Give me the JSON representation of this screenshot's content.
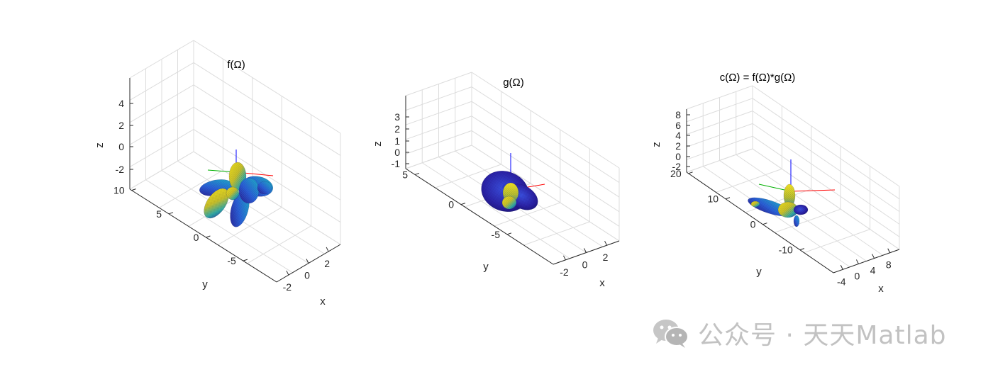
{
  "chart_data": [
    {
      "type": "surface3d",
      "title": "f(Ω)",
      "xlabel": "x",
      "ylabel": "y",
      "zlabel": "z",
      "x_ticks": [
        "-2",
        "0",
        "2"
      ],
      "y_ticks": [
        "10",
        "5",
        "0",
        "-5"
      ],
      "z_ticks": [
        "4",
        "2",
        "0",
        "-2"
      ],
      "grid": true
    },
    {
      "type": "surface3d",
      "title": "g(Ω)",
      "xlabel": "x",
      "ylabel": "y",
      "zlabel": "z",
      "x_ticks": [
        "-2",
        "0",
        "2"
      ],
      "y_ticks": [
        "5",
        "0",
        "-5"
      ],
      "z_ticks": [
        "3",
        "2",
        "1",
        "0",
        "-1"
      ],
      "grid": true
    },
    {
      "type": "surface3d",
      "title": "c(Ω) = f(Ω)*g(Ω)",
      "xlabel": "x",
      "ylabel": "y",
      "zlabel": "z",
      "x_ticks": [
        "-4",
        "0",
        "4",
        "8"
      ],
      "y_ticks": [
        "20",
        "10",
        "0",
        "-10"
      ],
      "z_ticks": [
        "8",
        "6",
        "4",
        "2",
        "0",
        "-2"
      ],
      "grid": true
    }
  ],
  "colors": {
    "surface_low": "#2a1b8f",
    "surface_mid": "#1f9fb0",
    "surface_high": "#f2e21c",
    "grid": "#dcdcdc",
    "axis": "#262626",
    "x_axis_line": "#ff0000",
    "y_axis_line": "#00b000",
    "z_axis_line": "#0000ff"
  },
  "watermark": {
    "text": "公众号 · 天天Matlab",
    "icon": "wechat-icon"
  }
}
